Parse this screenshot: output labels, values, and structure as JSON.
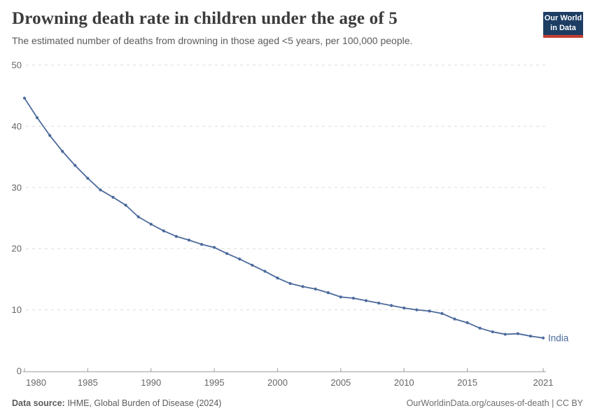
{
  "header": {
    "title": "Drowning death rate in children under the age of 5",
    "subtitle": "The estimated number of deaths from drowning in those aged <5 years, per 100,000 people.",
    "logo": {
      "line1": "Our World",
      "line2": "in Data"
    }
  },
  "chart_data": {
    "type": "line",
    "title": "Drowning death rate in children under the age of 5",
    "subtitle": "The estimated number of deaths from drowning in those aged <5 years, per 100,000 people.",
    "x": [
      1980,
      1981,
      1982,
      1983,
      1984,
      1985,
      1986,
      1987,
      1988,
      1989,
      1990,
      1991,
      1992,
      1993,
      1994,
      1995,
      1996,
      1997,
      1998,
      1999,
      2000,
      2001,
      2002,
      2003,
      2004,
      2005,
      2006,
      2007,
      2008,
      2009,
      2010,
      2011,
      2012,
      2013,
      2014,
      2015,
      2016,
      2017,
      2018,
      2019,
      2020,
      2021
    ],
    "series": [
      {
        "name": "India",
        "color": "#4c6a9c",
        "values": [
          44.6,
          41.4,
          38.5,
          35.9,
          33.6,
          31.5,
          29.6,
          28.4,
          27.1,
          25.2,
          24.0,
          22.9,
          22.0,
          21.4,
          20.7,
          20.2,
          19.2,
          18.3,
          17.3,
          16.3,
          15.2,
          14.3,
          13.8,
          13.4,
          12.8,
          12.1,
          11.9,
          11.5,
          11.1,
          10.7,
          10.3,
          10.0,
          9.8,
          9.4,
          8.5,
          7.9,
          7.0,
          6.4,
          6.0,
          6.1,
          5.7,
          5.4
        ]
      }
    ],
    "xlabel": "",
    "ylabel": "",
    "ylim": [
      0,
      50
    ],
    "yticks": [
      0,
      10,
      20,
      30,
      40,
      50
    ],
    "xticks": [
      1980,
      1985,
      1990,
      1995,
      2000,
      2005,
      2010,
      2015,
      2021
    ],
    "grid": "horizontal-dashed",
    "legend": "end-of-line-label",
    "end_label": "India"
  },
  "footer": {
    "source_bold": "Data source:",
    "source_rest": " IHME, Global Burden of Disease (2024)",
    "credit": "OurWorldinData.org/causes-of-death | CC BY"
  },
  "colors": {
    "series": "#4c6a9c",
    "grid": "#dddddd",
    "axis": "#9a9a9a",
    "tick_label": "#666666",
    "title": "#3b3b3b",
    "subtitle": "#5b5b5b",
    "logo_bg": "#1d3d63",
    "logo_bar": "#c23d33"
  }
}
